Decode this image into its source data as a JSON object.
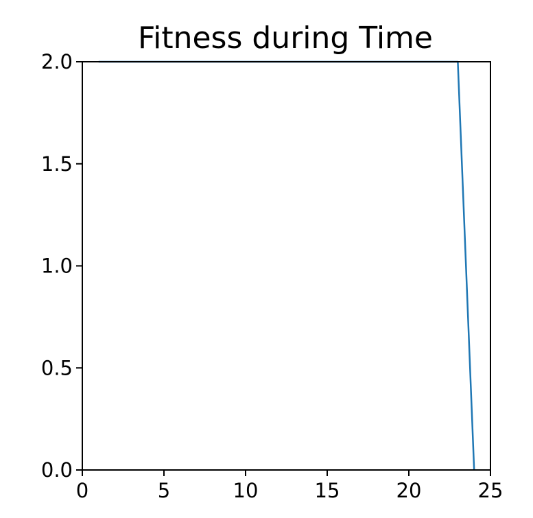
{
  "chart_data": {
    "type": "line",
    "title": "Fitness during Time",
    "xlabel": "",
    "ylabel": "",
    "xlim": [
      0,
      25
    ],
    "ylim": [
      0,
      2.0
    ],
    "xticks": [
      0,
      5,
      10,
      15,
      20,
      25
    ],
    "yticks": [
      0.0,
      0.5,
      1.0,
      1.5,
      2.0
    ],
    "xtick_labels": [
      "0",
      "5",
      "10",
      "15",
      "20",
      "25"
    ],
    "ytick_labels": [
      "0.0",
      "0.5",
      "1.0",
      "1.5",
      "2.0"
    ],
    "grid": false,
    "series": [
      {
        "color": "#1f77b4",
        "x": [
          1,
          2,
          3,
          4,
          5,
          6,
          7,
          8,
          9,
          10,
          11,
          12,
          13,
          14,
          15,
          16,
          17,
          18,
          19,
          20,
          21,
          22,
          23,
          24
        ],
        "y": [
          2,
          2,
          2,
          2,
          2,
          2,
          2,
          2,
          2,
          2,
          2,
          2,
          2,
          2,
          2,
          2,
          2,
          2,
          2,
          2,
          2,
          2,
          2,
          0
        ]
      }
    ]
  }
}
